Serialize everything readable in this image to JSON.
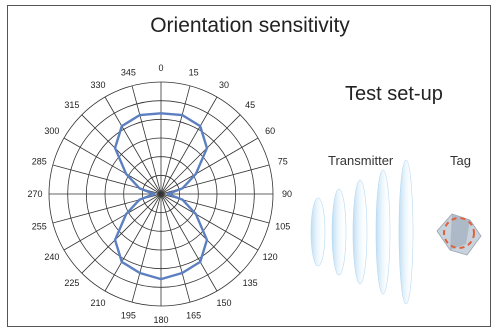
{
  "title": "Orientation sensitivity",
  "setup": {
    "title": "Test set-up",
    "transmitter_label": "Transmitter",
    "tag_label": "Tag"
  },
  "colors": {
    "curve": "#5b7fc0",
    "grid": "#333333",
    "wave": "#a9d3f0",
    "tag_ring": "#e0603a"
  },
  "chart_data": {
    "type": "polar-line",
    "title": "Orientation sensitivity",
    "angle_unit": "degrees",
    "angle_ticks": [
      "0",
      "15",
      "30",
      "45",
      "60",
      "75",
      "90",
      "105",
      "120",
      "135",
      "150",
      "165",
      "180",
      "195",
      "210",
      "225",
      "240",
      "255",
      "270",
      "285",
      "300",
      "315",
      "330",
      "345"
    ],
    "rings": 6,
    "r_range": [
      0,
      1
    ],
    "series": [
      {
        "angles": [
          0,
          15,
          30,
          45,
          60,
          75,
          90,
          105,
          120,
          135,
          150,
          165,
          180,
          195,
          210,
          225,
          240,
          255,
          270,
          285,
          300,
          315,
          330,
          345
        ],
        "values": [
          0.72,
          0.73,
          0.7,
          0.58,
          0.36,
          0.2,
          0.06,
          0.2,
          0.36,
          0.58,
          0.7,
          0.73,
          0.76,
          0.73,
          0.7,
          0.58,
          0.36,
          0.2,
          0.06,
          0.2,
          0.36,
          0.58,
          0.7,
          0.73
        ]
      }
    ],
    "grid": true
  }
}
